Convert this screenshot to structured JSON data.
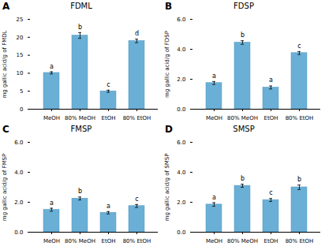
{
  "chart_data": [
    {
      "type": "bar",
      "label": "A",
      "title": "FDML",
      "ylabel": "mg gallic acid/g of FMDL",
      "categories": [
        "MeOH",
        "80% MeOH",
        "EtOH",
        "80% EtOH"
      ],
      "values": [
        10.1,
        20.5,
        5.0,
        19.0
      ],
      "errors": [
        0.3,
        0.8,
        0.3,
        0.5
      ],
      "letters": [
        "a",
        "b",
        "c",
        "d"
      ],
      "color": "#6aafd6",
      "ylim": [
        0,
        25
      ],
      "yticks": [
        0,
        5,
        10,
        15,
        20,
        25
      ],
      "grid": false
    },
    {
      "type": "bar",
      "label": "B",
      "title": "FDSP",
      "ylabel": "mg gallic acid/g of FDSP",
      "categories": [
        "MeOH",
        "80% MeOH",
        "EtOH",
        "80% EtOH"
      ],
      "values": [
        1.75,
        4.45,
        1.45,
        3.75
      ],
      "errors": [
        0.1,
        0.12,
        0.1,
        0.1
      ],
      "letters": [
        "a",
        "b",
        "a",
        "c"
      ],
      "color": "#6aafd6",
      "ylim": [
        0,
        6
      ],
      "yticks": [
        0,
        2,
        4,
        6
      ],
      "grid": false
    },
    {
      "type": "bar",
      "label": "C",
      "title": "FMSP",
      "ylabel": "mg gallic acid/g of FMSP",
      "categories": [
        "MeOH",
        "80% MeOH",
        "EtOH",
        "80% EtOH"
      ],
      "values": [
        1.5,
        2.25,
        1.3,
        1.75
      ],
      "errors": [
        0.1,
        0.1,
        0.08,
        0.1
      ],
      "letters": [
        "a",
        "b",
        "a",
        "c"
      ],
      "color": "#6aafd6",
      "ylim": [
        0,
        6
      ],
      "yticks": [
        0,
        2,
        4,
        6
      ],
      "grid": false
    },
    {
      "type": "bar",
      "label": "D",
      "title": "SMSP",
      "ylabel": "mg gallic acid/g of SMSP",
      "categories": [
        "MeOH",
        "80% MeOH",
        "EtOH",
        "80% EtOH"
      ],
      "values": [
        1.85,
        3.1,
        2.15,
        3.0
      ],
      "errors": [
        0.12,
        0.1,
        0.1,
        0.15
      ],
      "letters": [
        "a",
        "b",
        "c",
        "b"
      ],
      "color": "#6aafd6",
      "ylim": [
        0,
        6
      ],
      "yticks": [
        0,
        2,
        4,
        6
      ],
      "grid": false
    }
  ]
}
